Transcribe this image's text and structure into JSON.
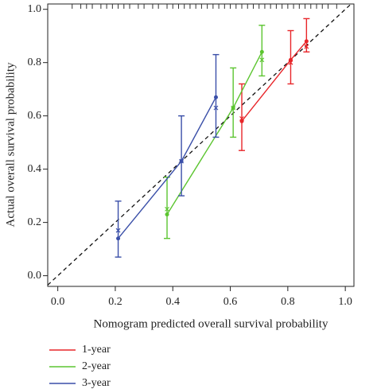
{
  "chart_data": {
    "type": "calibration",
    "x_label": "Nomogram predicted overall survival probability",
    "y_label": "Actual overall survival probability",
    "xlim": [
      -0.035,
      1.03
    ],
    "ylim": [
      -0.04,
      1.02
    ],
    "xticks": [
      {
        "value": 0,
        "label": "0.0"
      },
      {
        "value": 0.2,
        "label": "0.2"
      },
      {
        "value": 0.4,
        "label": "0.4"
      },
      {
        "value": 0.6,
        "label": "0.6"
      },
      {
        "value": 0.8,
        "label": "0.8"
      },
      {
        "value": 1,
        "label": "1.0"
      }
    ],
    "yticks": [
      {
        "value": 0,
        "label": "0.0"
      },
      {
        "value": 0.2,
        "label": "0.2"
      },
      {
        "value": 0.4,
        "label": "0.4"
      },
      {
        "value": 0.6,
        "label": "0.6"
      },
      {
        "value": 0.8,
        "label": "0.8"
      },
      {
        "value": 1,
        "label": "1.0"
      }
    ],
    "rug": [
      0.05,
      0.08,
      0.1,
      0.12,
      0.15,
      0.17,
      0.19,
      0.21,
      0.23,
      0.25,
      0.28,
      0.3,
      0.33,
      0.35,
      0.38,
      0.4,
      0.42,
      0.44,
      0.46,
      0.48,
      0.5,
      0.52,
      0.54,
      0.56,
      0.58,
      0.6,
      0.62,
      0.64,
      0.66,
      0.68,
      0.7,
      0.72,
      0.74,
      0.76,
      0.78,
      0.8,
      0.82,
      0.84,
      0.86,
      0.88,
      0.9,
      0.92,
      0.94,
      0.97
    ],
    "series": [
      {
        "name": "1-year",
        "color": "#e8262a",
        "x": [
          0.64,
          0.81,
          0.865
        ],
        "values": [
          0.58,
          0.81,
          0.88
        ],
        "lower": [
          0.47,
          0.72,
          0.84
        ],
        "upper": [
          0.72,
          0.92,
          0.965
        ],
        "corrected": [
          0.59,
          0.8,
          0.86
        ]
      },
      {
        "name": "2-year",
        "color": "#5cc530",
        "x": [
          0.38,
          0.61,
          0.71
        ],
        "values": [
          0.23,
          0.63,
          0.84
        ],
        "lower": [
          0.14,
          0.52,
          0.75
        ],
        "upper": [
          0.37,
          0.78,
          0.94
        ],
        "corrected": [
          0.25,
          0.63,
          0.81
        ]
      },
      {
        "name": "3-year",
        "color": "#3a4fa8",
        "x": [
          0.21,
          0.43,
          0.55
        ],
        "values": [
          0.14,
          0.43,
          0.67
        ],
        "lower": [
          0.07,
          0.3,
          0.52
        ],
        "upper": [
          0.28,
          0.6,
          0.83
        ],
        "corrected": [
          0.17,
          0.43,
          0.63
        ]
      }
    ]
  }
}
